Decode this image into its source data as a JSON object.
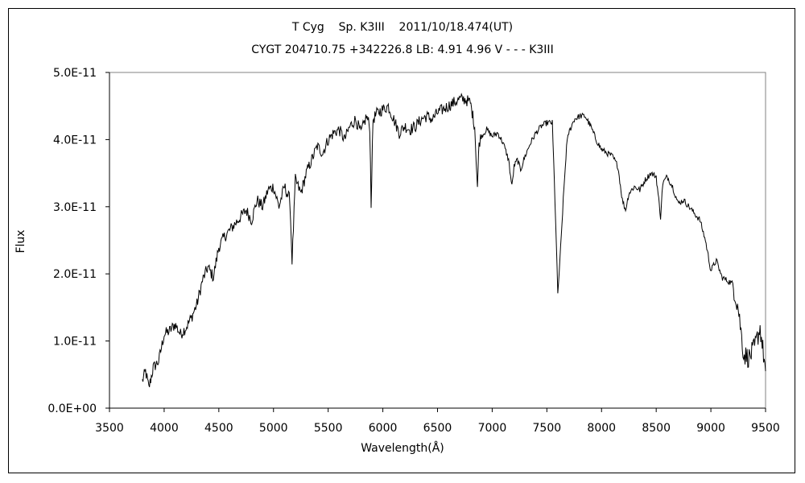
{
  "chart_data": {
    "type": "line",
    "title": "T Cyg    Sp. K3III    2011/10/18.474(UT)",
    "subtitle": "CYGT 204710.75 +342226.8 LB: 4.91 4.96 V - - - K3III",
    "xlabel": "Wavelength(Å)",
    "ylabel": "Flux",
    "xlim": [
      3500,
      9500
    ],
    "ylim": [
      0,
      5e-11
    ],
    "xticks": [
      3500,
      4000,
      4500,
      5000,
      5500,
      6000,
      6500,
      7000,
      7500,
      8000,
      8500,
      9000,
      9500
    ],
    "xtick_labels": [
      "3500",
      "4000",
      "4500",
      "5000",
      "5500",
      "6000",
      "6500",
      "7000",
      "7500",
      "8000",
      "8500",
      "9000",
      "9500"
    ],
    "yticks": [
      0,
      1e-11,
      2e-11,
      3e-11,
      4e-11,
      5e-11
    ],
    "ytick_labels": [
      "0.0E+00",
      "1.0E-11",
      "2.0E-11",
      "3.0E-11",
      "4.0E-11",
      "5.0E-11"
    ],
    "grid": false,
    "legend": "none",
    "line_color": "#000000",
    "series": [
      {
        "x": [
          3800,
          3830,
          3860,
          3900,
          3950,
          4000,
          4050,
          4100,
          4150,
          4200,
          4250,
          4300,
          4350,
          4400,
          4450,
          4500,
          4550,
          4600,
          4650,
          4700,
          4750,
          4800,
          4850,
          4900,
          4950,
          5000,
          5050,
          5100,
          5150,
          5170,
          5200,
          5250,
          5300,
          5350,
          5400,
          5450,
          5500,
          5550,
          5600,
          5650,
          5700,
          5750,
          5800,
          5850,
          5880,
          5893,
          5910,
          5950,
          6000,
          6050,
          6100,
          6150,
          6200,
          6250,
          6300,
          6350,
          6400,
          6450,
          6500,
          6550,
          6600,
          6650,
          6700,
          6750,
          6800,
          6840,
          6865,
          6880,
          6900,
          6950,
          7000,
          7050,
          7100,
          7150,
          7180,
          7200,
          7230,
          7260,
          7300,
          7350,
          7400,
          7450,
          7500,
          7550,
          7580,
          7600,
          7620,
          7650,
          7680,
          7700,
          7750,
          7800,
          7850,
          7900,
          7950,
          8000,
          8050,
          8100,
          8150,
          8190,
          8220,
          8250,
          8300,
          8350,
          8400,
          8450,
          8500,
          8540,
          8560,
          8600,
          8650,
          8700,
          8750,
          8800,
          8850,
          8900,
          8950,
          9000,
          9050,
          9100,
          9150,
          9200,
          9250,
          9300,
          9350,
          9400,
          9450,
          9500
        ],
        "y": [
          4e-12,
          5.5e-12,
          3e-12,
          6e-12,
          7e-12,
          1.1e-11,
          1.15e-11,
          1.25e-11,
          1.1e-11,
          1.2e-11,
          1.35e-11,
          1.55e-11,
          1.9e-11,
          2.1e-11,
          1.95e-11,
          2.4e-11,
          2.55e-11,
          2.65e-11,
          2.75e-11,
          2.85e-11,
          2.95e-11,
          2.8e-11,
          3.1e-11,
          3e-11,
          3.25e-11,
          3.3e-11,
          3e-11,
          3.3e-11,
          3.1e-11,
          2.2e-11,
          3.4e-11,
          3.2e-11,
          3.5e-11,
          3.7e-11,
          3.9e-11,
          3.8e-11,
          4e-11,
          4.1e-11,
          4.15e-11,
          4e-11,
          4.2e-11,
          4.3e-11,
          4.1e-11,
          4.35e-11,
          4.2e-11,
          3.05e-11,
          4.3e-11,
          4.4e-11,
          4.45e-11,
          4.5e-11,
          4.3e-11,
          4.1e-11,
          4.2e-11,
          4.15e-11,
          4.2e-11,
          4.3e-11,
          4.35e-11,
          4.3e-11,
          4.4e-11,
          4.45e-11,
          4.5e-11,
          4.55e-11,
          4.6e-11,
          4.6e-11,
          4.55e-11,
          4.2e-11,
          3.3e-11,
          3.95e-11,
          4.05e-11,
          4.15e-11,
          4.05e-11,
          4.1e-11,
          3.95e-11,
          3.7e-11,
          3.3e-11,
          3.6e-11,
          3.7e-11,
          3.55e-11,
          3.75e-11,
          3.95e-11,
          4.1e-11,
          4.2e-11,
          4.25e-11,
          4.25e-11,
          2.8e-11,
          1.7e-11,
          2.2e-11,
          3.1e-11,
          3.9e-11,
          4.1e-11,
          4.3e-11,
          4.35e-11,
          4.35e-11,
          4.2e-11,
          4e-11,
          3.85e-11,
          3.8e-11,
          3.75e-11,
          3.6e-11,
          3.1e-11,
          2.95e-11,
          3.2e-11,
          3.3e-11,
          3.25e-11,
          3.4e-11,
          3.5e-11,
          3.45e-11,
          2.85e-11,
          3.35e-11,
          3.45e-11,
          3.3e-11,
          3.05e-11,
          3.1e-11,
          3e-11,
          2.9e-11,
          2.8e-11,
          2.5e-11,
          2.05e-11,
          2.2e-11,
          1.95e-11,
          1.9e-11,
          1.85e-11,
          1.5e-11,
          8e-12,
          7.5e-12,
          9e-12,
          1.2e-11,
          5.5e-12
        ]
      }
    ]
  }
}
